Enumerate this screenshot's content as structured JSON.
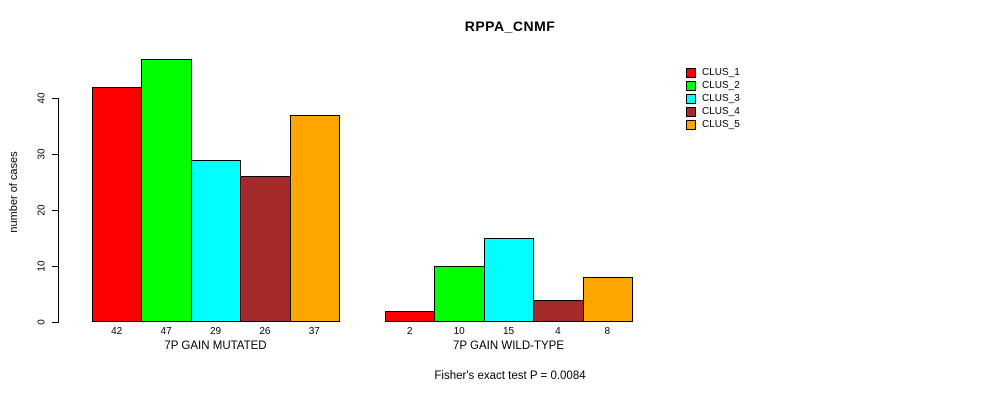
{
  "chart_data": {
    "type": "bar",
    "title": "RPPA_CNMF",
    "ylabel": "number of cases",
    "ylim": [
      0,
      47
    ],
    "yticks": [
      0,
      10,
      20,
      30,
      40
    ],
    "grid": false,
    "legend_position": "right",
    "clusters": [
      {
        "name": "CLUS_1",
        "color": "#FF0000"
      },
      {
        "name": "CLUS_2",
        "color": "#00FF00"
      },
      {
        "name": "CLUS_3",
        "color": "#00FFFF"
      },
      {
        "name": "CLUS_4",
        "color": "#A52A2A"
      },
      {
        "name": "CLUS_5",
        "color": "#FFA500"
      }
    ],
    "groups": [
      {
        "label": "7P GAIN MUTATED",
        "values": [
          42,
          47,
          29,
          26,
          37
        ]
      },
      {
        "label": "7P GAIN WILD-TYPE",
        "values": [
          2,
          10,
          15,
          4,
          8
        ]
      }
    ],
    "annotation": "Fisher's exact test P = 0.0084"
  }
}
